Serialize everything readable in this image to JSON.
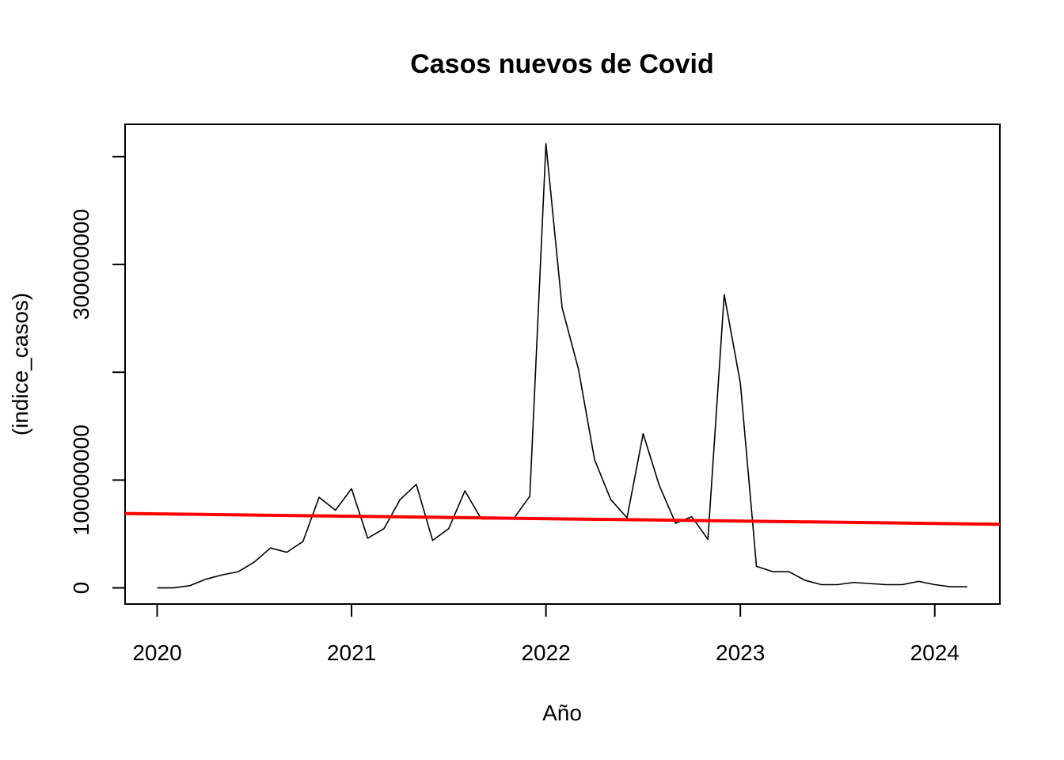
{
  "chart_data": {
    "type": "line",
    "title": "Casos nuevos de Covid",
    "xlabel": "Año",
    "ylabel": "(indice_casos)",
    "xlim": [
      2019.835,
      2024.335
    ],
    "ylim": [
      -15000000,
      430000000
    ],
    "x_ticks": [
      {
        "value": 2020,
        "label": "2020"
      },
      {
        "value": 2021,
        "label": "2021"
      },
      {
        "value": 2022,
        "label": "2022"
      },
      {
        "value": 2023,
        "label": "2023"
      },
      {
        "value": 2024,
        "label": "2024"
      }
    ],
    "y_ticks": [
      {
        "value": 0,
        "label": "0"
      },
      {
        "value": 100000000,
        "label": "100000000"
      },
      {
        "value": 200000000,
        "label": ""
      },
      {
        "value": 300000000,
        "label": "300000000"
      },
      {
        "value": 400000000,
        "label": ""
      }
    ],
    "grid": false,
    "series": [
      {
        "color": "#000000",
        "x": [
          2020.0,
          2020.083,
          2020.167,
          2020.25,
          2020.333,
          2020.417,
          2020.5,
          2020.583,
          2020.667,
          2020.75,
          2020.833,
          2020.917,
          2021.0,
          2021.083,
          2021.167,
          2021.25,
          2021.333,
          2021.417,
          2021.5,
          2021.583,
          2021.667,
          2021.75,
          2021.833,
          2021.917,
          2022.0,
          2022.083,
          2022.167,
          2022.25,
          2022.333,
          2022.417,
          2022.5,
          2022.583,
          2022.667,
          2022.75,
          2022.833,
          2022.917,
          2023.0,
          2023.083,
          2023.167,
          2023.25,
          2023.333,
          2023.417,
          2023.5,
          2023.583,
          2023.667,
          2023.75,
          2023.833,
          2023.917,
          2024.0,
          2024.083,
          2024.167
        ],
        "y": [
          0,
          0,
          2000000,
          8000000,
          12000000,
          15000000,
          24000000,
          37000000,
          33000000,
          43000000,
          84000000,
          72000000,
          92000000,
          46000000,
          55000000,
          82000000,
          96000000,
          44000000,
          55000000,
          90000000,
          64000000,
          64000000,
          64000000,
          85000000,
          412000000,
          260000000,
          203000000,
          119000000,
          82000000,
          65000000,
          143000000,
          95000000,
          60000000,
          66000000,
          45000000,
          272000000,
          190000000,
          20000000,
          15000000,
          15000000,
          7000000,
          3000000,
          3000000,
          5000000,
          4000000,
          3000000,
          3000000,
          6000000,
          3000000,
          1000000,
          1000000
        ]
      },
      {
        "color": "#ff0000",
        "x": [
          2019.835,
          2024.335
        ],
        "y": [
          69000000,
          59000000
        ]
      }
    ]
  }
}
